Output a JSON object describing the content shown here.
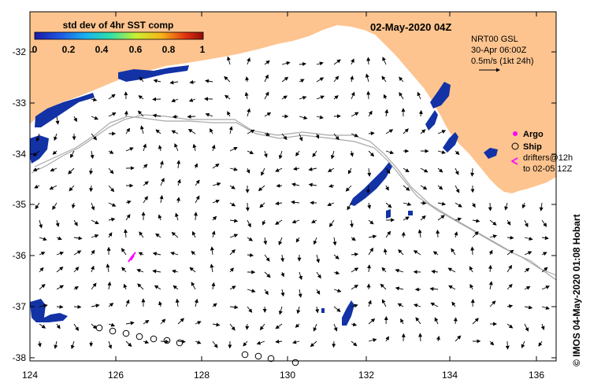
{
  "map": {
    "date_title": "02-May-2020 04Z",
    "colorbar": {
      "title": "std dev of 4hr SST comp",
      "ticks": [
        "0",
        "0.2",
        "0.4",
        "0.6",
        "0.8",
        "1"
      ]
    },
    "current_info": {
      "line1": "NRT00 GSL",
      "line2": "30-Apr 06:00Z",
      "line3": "0.5m/s (1kt 24h)"
    },
    "legend": {
      "argo": "Argo",
      "ship": "Ship",
      "drifters_line1": "drifters@12h",
      "drifters_line2": "to 02-05 12Z"
    },
    "credit": "© IMOS 04-May-2020 01:08 Hobart",
    "axes": {
      "y_labels": [
        "-32",
        "-33",
        "-34",
        "-35",
        "-36",
        "-37",
        "-38"
      ],
      "x_labels": [
        "124",
        "126",
        "128",
        "130",
        "132",
        "134",
        "136"
      ]
    },
    "colors": {
      "land": "#fdc48f",
      "ocean": "#ffffff",
      "sst_low": "#1232a6",
      "argo": "#ff00ff",
      "track": "#a8a8a8"
    }
  }
}
